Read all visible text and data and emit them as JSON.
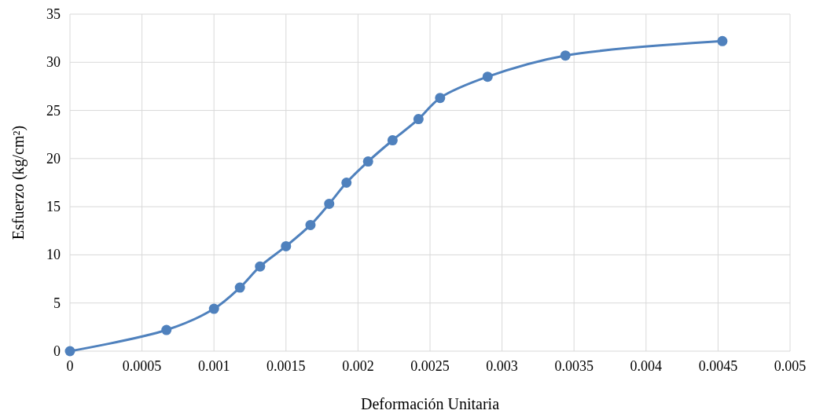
{
  "chart_data": {
    "type": "line",
    "xlabel": "Deformación Unitaria",
    "ylabel": "Esfuerzo (kg/cm²)",
    "x": [
      0,
      0.00067,
      0.001,
      0.00118,
      0.00132,
      0.0015,
      0.00167,
      0.0018,
      0.00192,
      0.00207,
      0.00224,
      0.00242,
      0.00257,
      0.0029,
      0.00344,
      0.00453
    ],
    "series": [
      {
        "color": "#4f81bd",
        "values": [
          0,
          2.2,
          4.4,
          6.6,
          8.8,
          10.9,
          13.1,
          15.3,
          17.5,
          19.7,
          21.9,
          24.1,
          26.3,
          28.5,
          30.7,
          32.2
        ]
      }
    ],
    "xlim": [
      0,
      0.005
    ],
    "xticks": [
      0,
      0.0005,
      0.001,
      0.0015,
      0.002,
      0.0025,
      0.003,
      0.0035,
      0.004,
      0.0045,
      0.005
    ],
    "ylim": [
      0,
      35
    ],
    "yticks": [
      0,
      5,
      10,
      15,
      20,
      25,
      30,
      35
    ],
    "grid": true,
    "marker": "circle",
    "line_style": "solid"
  }
}
